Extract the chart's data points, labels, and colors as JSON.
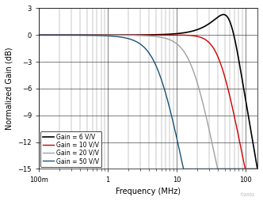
{
  "title": "",
  "xlabel": "Frequency (MHz)",
  "ylabel": "Normalized Gain (dB)",
  "ylim": [
    -15,
    3
  ],
  "yticks": [
    3,
    0,
    -3,
    -6,
    -9,
    -12,
    -15
  ],
  "xtick_labels": [
    "100m",
    "1",
    "10",
    "100"
  ],
  "xtick_values": [
    0.1,
    1,
    10,
    100
  ],
  "background_color": "#ffffff",
  "legend_labels": [
    "Gain = 6 V/V",
    "Gain = 10 V/V",
    "Gain = 20 V/V",
    "Gain = 50 V/V"
  ],
  "line_colors": [
    "#000000",
    "#cc0000",
    "#a0a0a0",
    "#1a5276"
  ],
  "curves": {
    "g6": {
      "f0": 60.0,
      "Q": 1.18
    },
    "g10": {
      "f0": 42.0,
      "Q": 0.72
    },
    "g20": {
      "f0": 17.0,
      "Q": 0.65
    },
    "g50": {
      "f0": 5.5,
      "Q": 0.62
    }
  },
  "xlim_min": 0.1,
  "xlim_max": 150,
  "copyright": "©2001",
  "copyright_fontsize": 4
}
